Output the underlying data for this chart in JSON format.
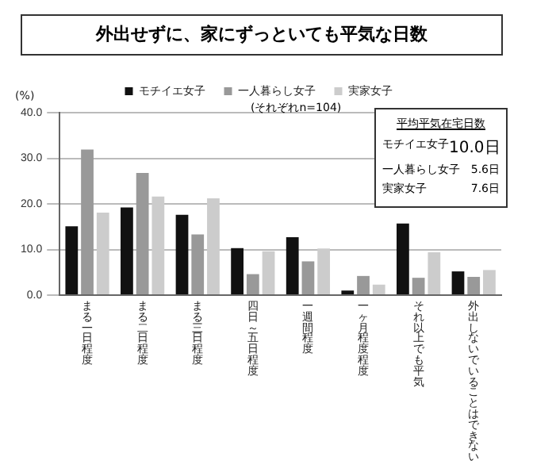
{
  "chart_data": {
    "type": "bar",
    "title": "外出せずに、家にずっといても平気な日数",
    "ylabel": "(%)",
    "categories": [
      "まる一日程度",
      "まる二日程度",
      "まる三日程度",
      "四日～五日程度",
      "一週間程度",
      "一ヶ月程度程度",
      "それ以上でも平気",
      "外出しないでいることはできない"
    ],
    "series": [
      {
        "name": "モチイエ女子",
        "color": "#111111",
        "values": [
          15.1,
          19.2,
          17.6,
          10.3,
          12.7,
          1.0,
          15.7,
          5.2
        ]
      },
      {
        "name": "一人暮らし女子",
        "color": "#999999",
        "values": [
          31.9,
          26.8,
          13.3,
          4.6,
          7.4,
          4.2,
          3.8,
          4.0
        ]
      },
      {
        "name": "実家女子",
        "color": "#cccccc",
        "values": [
          18.1,
          21.6,
          21.2,
          9.6,
          10.2,
          2.3,
          9.4,
          5.5
        ]
      }
    ],
    "ylim": [
      0,
      40
    ],
    "yticks": [
      {
        "value": 0,
        "label": "0.0"
      },
      {
        "value": 10,
        "label": "10.0"
      },
      {
        "value": 20,
        "label": "20.0"
      },
      {
        "value": 30,
        "label": "30.0"
      },
      {
        "value": 40,
        "label": "40.0"
      }
    ],
    "grid": "y",
    "legend": "top",
    "annotations": [
      "(それぞれn=104)",
      "平均平気在宅日数",
      "モチイエ女子",
      "10.0日",
      "一人暮らし女子",
      "5.6日",
      "実家女子",
      "7.6日"
    ]
  }
}
